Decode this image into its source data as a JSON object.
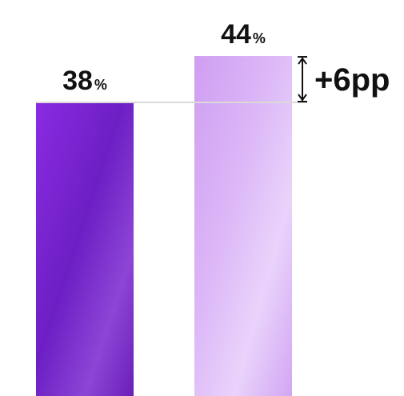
{
  "chart_data": {
    "type": "bar",
    "categories": [
      "",
      ""
    ],
    "values": [
      38,
      44
    ],
    "value_labels": [
      {
        "number": "38",
        "unit": "%"
      },
      {
        "number": "44",
        "unit": "%"
      }
    ],
    "annotation": "+6pp",
    "colors": [
      "#7e22ce",
      "#d8b4fe"
    ],
    "axis": "none",
    "grid": false,
    "legend": "none"
  }
}
